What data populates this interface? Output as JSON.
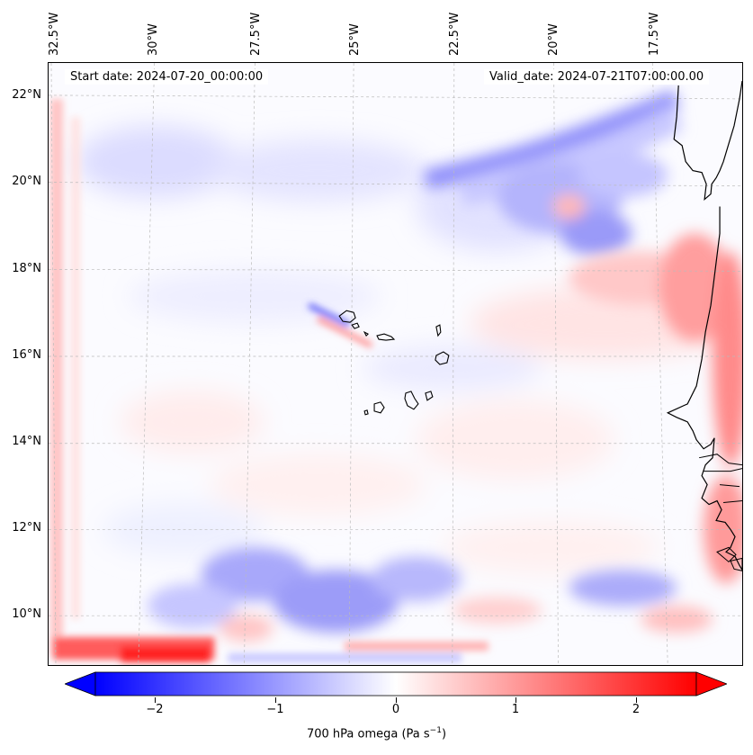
{
  "map": {
    "start_label": "Start date: 2024-07-20_00:00:00",
    "valid_label": "Valid_date: 2024-07-21T07:00:00.00",
    "lon_labels": [
      "32.5°W",
      "30°W",
      "27.5°W",
      "25°W",
      "22.5°W",
      "20°W",
      "17.5°W"
    ],
    "lat_labels": [
      "22°N",
      "20°N",
      "18°N",
      "16°N",
      "14°N",
      "12°N",
      "10°N"
    ]
  },
  "colorbar": {
    "ticks": [
      "−2",
      "−1",
      "0",
      "1",
      "2"
    ],
    "label_main": "700 hPa omega (Pa s",
    "label_sup": "−1",
    "label_end": ")",
    "range": [
      -2.7,
      2.7
    ],
    "colors": {
      "negative": "#0000ff",
      "zero": "#ffffff",
      "positive": "#ff0000"
    }
  }
}
